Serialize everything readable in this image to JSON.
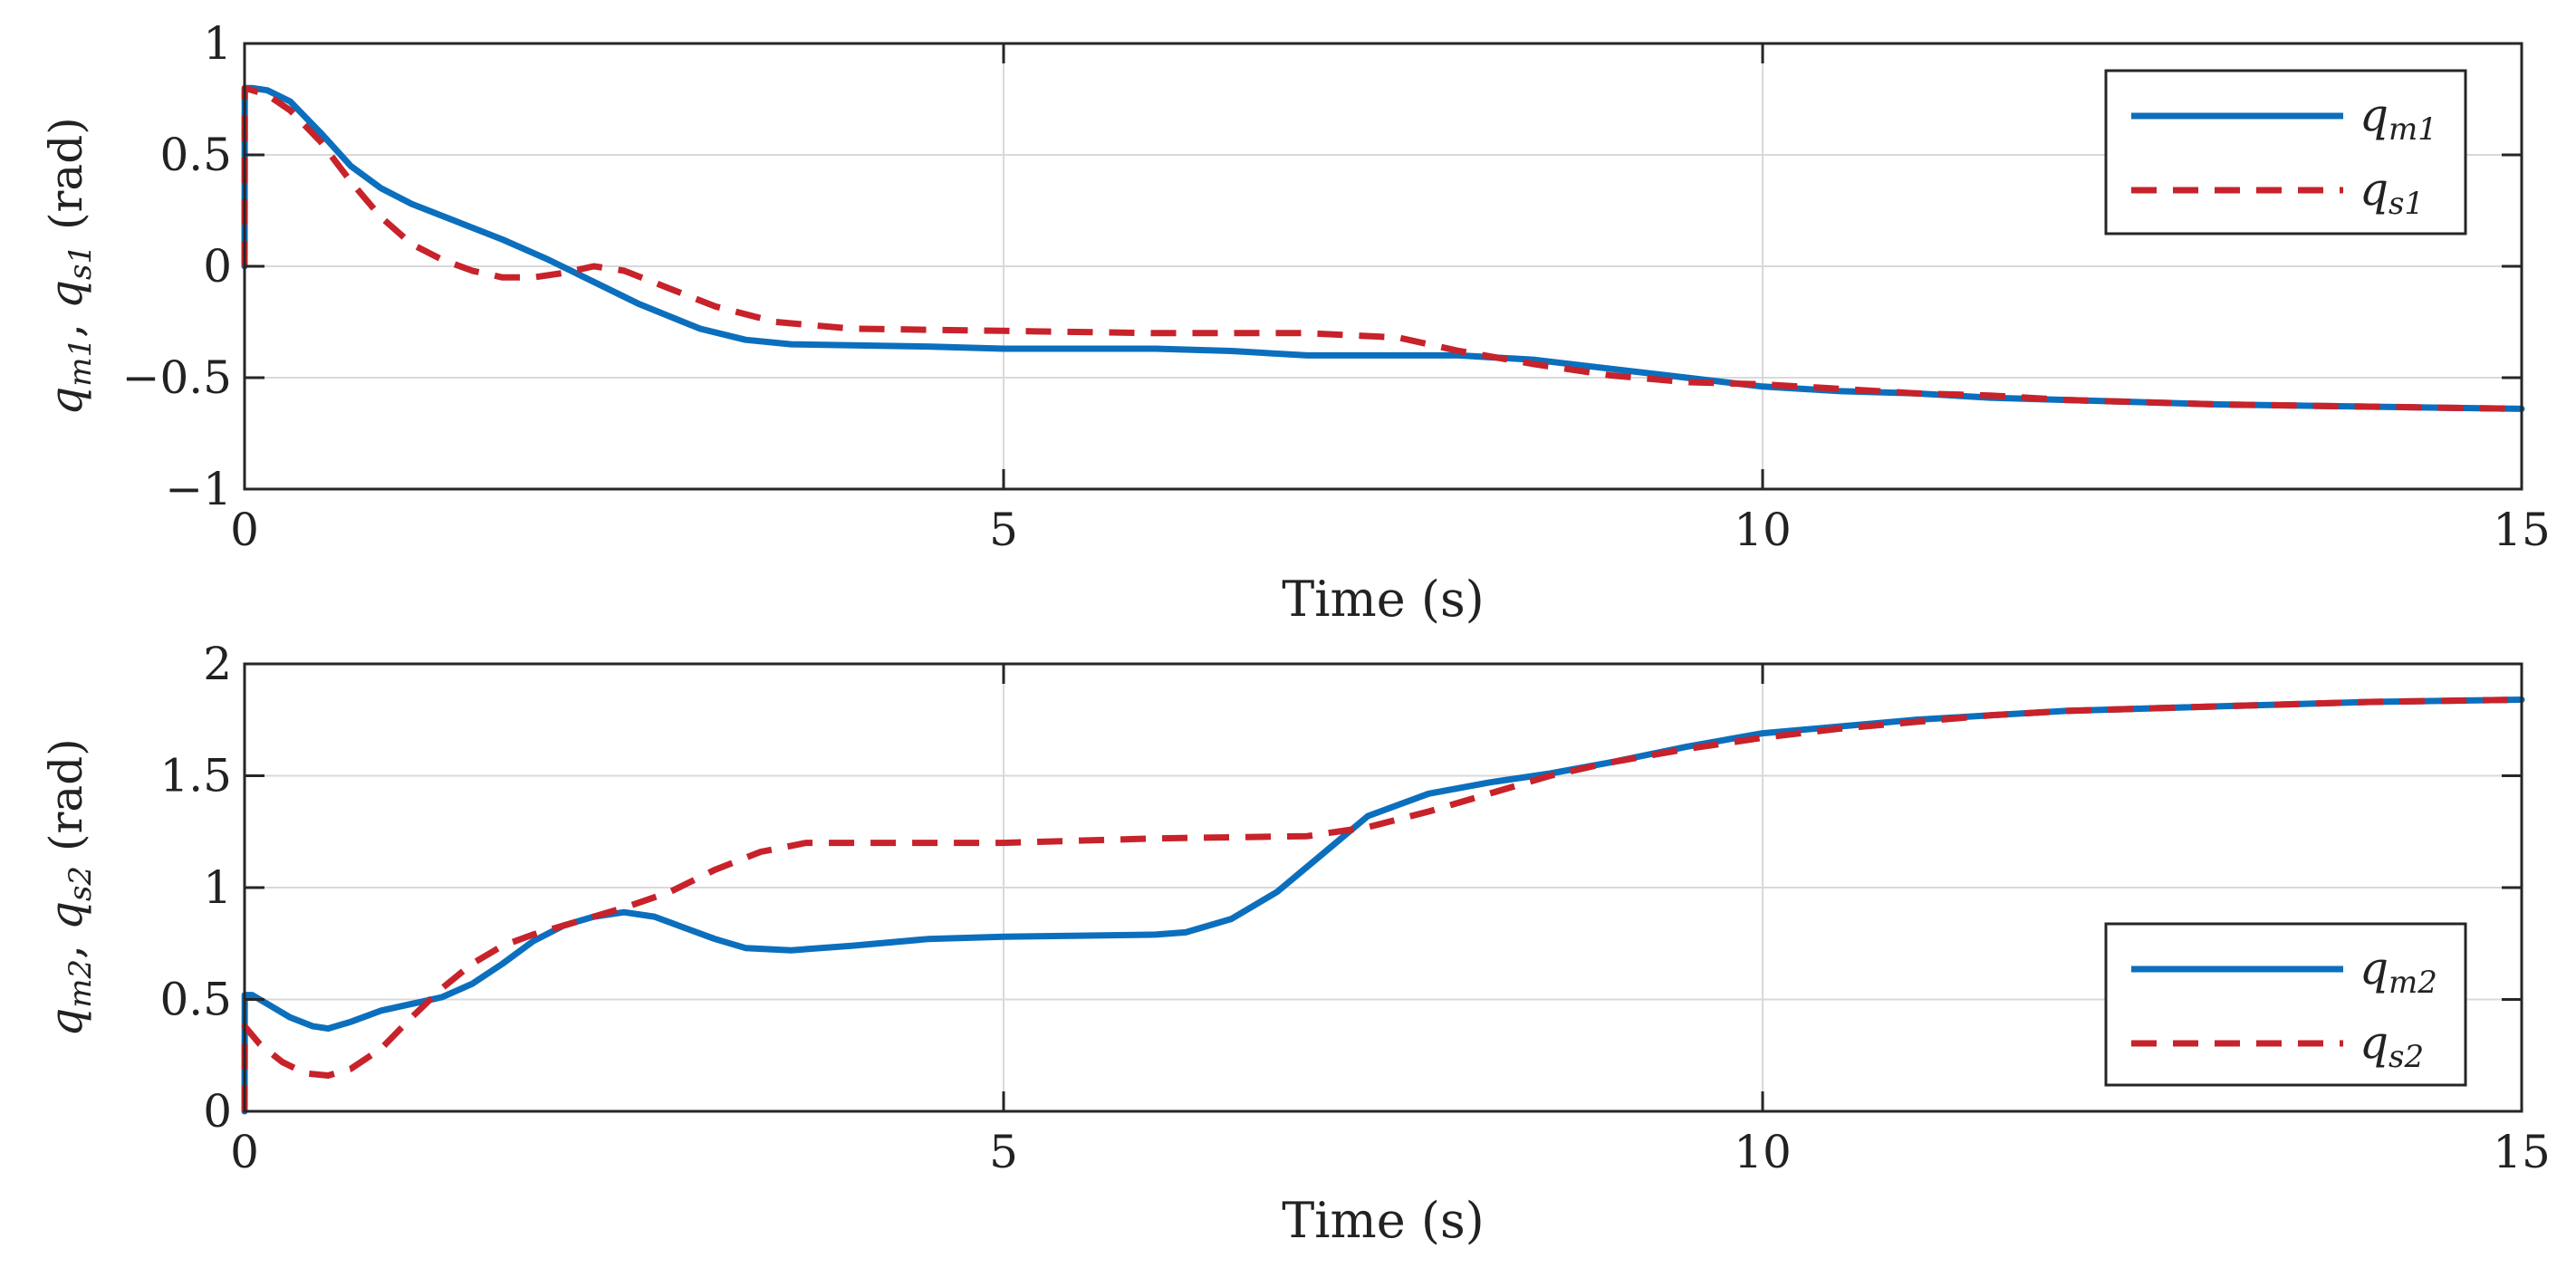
{
  "colors": {
    "series_primary": "#0b6fbd",
    "series_secondary": "#c8222a",
    "grid": "#d9d9d9",
    "axis": "#262626"
  },
  "chart_data": [
    {
      "type": "line",
      "xlabel": "Time (s)",
      "ylabel": {
        "q1": "q",
        "sub1": "m1",
        "q2": "q",
        "sub2": "s1",
        "unit": "(rad)"
      },
      "xlim": [
        0,
        15
      ],
      "ylim": [
        -1,
        1
      ],
      "xticks": [
        0,
        5,
        10,
        15
      ],
      "xtick_labels": [
        "0",
        "5",
        "10",
        "15"
      ],
      "yticks": [
        -1,
        -0.5,
        0,
        0.5,
        1
      ],
      "ytick_labels": [
        "−1",
        "−0.5",
        "0",
        "0.5",
        "1"
      ],
      "grid": true,
      "legend": {
        "position": "top-right"
      },
      "series": [
        {
          "name": "q",
          "sub": "m1",
          "style": "solid",
          "color": "#0b6fbd",
          "x": [
            0,
            0.001,
            0.05,
            0.15,
            0.3,
            0.5,
            0.7,
            0.9,
            1.1,
            1.4,
            1.7,
            2.0,
            2.3,
            2.6,
            3.0,
            3.3,
            3.6,
            4.0,
            4.5,
            5.0,
            5.5,
            6.0,
            6.5,
            7.0,
            7.5,
            8.0,
            8.5,
            9.0,
            9.5,
            10.0,
            10.5,
            11.0,
            11.5,
            12.0,
            13.0,
            14.0,
            15.0
          ],
          "y": [
            0,
            0.8,
            0.8,
            0.79,
            0.74,
            0.6,
            0.45,
            0.35,
            0.28,
            0.2,
            0.12,
            0.03,
            -0.07,
            -0.17,
            -0.28,
            -0.33,
            -0.35,
            -0.355,
            -0.36,
            -0.37,
            -0.37,
            -0.37,
            -0.38,
            -0.4,
            -0.4,
            -0.4,
            -0.42,
            -0.46,
            -0.5,
            -0.54,
            -0.56,
            -0.57,
            -0.59,
            -0.6,
            -0.62,
            -0.63,
            -0.64
          ]
        },
        {
          "name": "q",
          "sub": "s1",
          "style": "dashed",
          "color": "#c8222a",
          "x": [
            0,
            0.001,
            0.05,
            0.15,
            0.3,
            0.5,
            0.7,
            0.9,
            1.1,
            1.3,
            1.5,
            1.7,
            1.9,
            2.1,
            2.3,
            2.5,
            2.8,
            3.1,
            3.5,
            4.0,
            5.0,
            6.0,
            7.0,
            7.6,
            8.0,
            8.5,
            9.0,
            9.5,
            10.0,
            10.5,
            11.0,
            11.5,
            12.0,
            13.0,
            14.0,
            15.0
          ],
          "y": [
            0,
            0.8,
            0.79,
            0.77,
            0.7,
            0.56,
            0.38,
            0.22,
            0.1,
            0.03,
            -0.02,
            -0.05,
            -0.05,
            -0.03,
            0.0,
            -0.02,
            -0.1,
            -0.18,
            -0.25,
            -0.28,
            -0.29,
            -0.3,
            -0.3,
            -0.32,
            -0.38,
            -0.44,
            -0.49,
            -0.52,
            -0.53,
            -0.55,
            -0.57,
            -0.58,
            -0.6,
            -0.62,
            -0.63,
            -0.64
          ]
        }
      ]
    },
    {
      "type": "line",
      "xlabel": "Time (s)",
      "ylabel": {
        "q1": "q",
        "sub1": "m2",
        "q2": "q",
        "sub2": "s2",
        "unit": "(rad)"
      },
      "xlim": [
        0,
        15
      ],
      "ylim": [
        0,
        2
      ],
      "xticks": [
        0,
        5,
        10,
        15
      ],
      "xtick_labels": [
        "0",
        "5",
        "10",
        "15"
      ],
      "yticks": [
        0,
        0.5,
        1,
        1.5,
        2
      ],
      "ytick_labels": [
        "0",
        "0.5",
        "1",
        "1.5",
        "2"
      ],
      "grid": true,
      "legend": {
        "position": "bottom-right"
      },
      "series": [
        {
          "name": "q",
          "sub": "m2",
          "style": "solid",
          "color": "#0b6fbd",
          "x": [
            0,
            0.001,
            0.05,
            0.15,
            0.3,
            0.45,
            0.55,
            0.7,
            0.9,
            1.1,
            1.3,
            1.5,
            1.7,
            1.9,
            2.1,
            2.3,
            2.5,
            2.7,
            2.9,
            3.1,
            3.3,
            3.6,
            4.0,
            4.5,
            5.0,
            5.5,
            6.0,
            6.2,
            6.5,
            6.8,
            7.1,
            7.4,
            7.8,
            8.2,
            8.6,
            9.0,
            9.5,
            10.0,
            10.5,
            11.0,
            11.5,
            12.0,
            13.0,
            14.0,
            15.0
          ],
          "y": [
            0,
            0.52,
            0.52,
            0.48,
            0.42,
            0.38,
            0.37,
            0.4,
            0.45,
            0.48,
            0.51,
            0.57,
            0.66,
            0.76,
            0.83,
            0.87,
            0.89,
            0.87,
            0.82,
            0.77,
            0.73,
            0.72,
            0.74,
            0.77,
            0.78,
            0.785,
            0.79,
            0.8,
            0.86,
            0.98,
            1.15,
            1.32,
            1.42,
            1.47,
            1.51,
            1.56,
            1.63,
            1.69,
            1.72,
            1.75,
            1.77,
            1.79,
            1.81,
            1.83,
            1.84
          ]
        },
        {
          "name": "q",
          "sub": "s2",
          "style": "dashed",
          "color": "#c8222a",
          "x": [
            0,
            0.001,
            0.1,
            0.25,
            0.4,
            0.55,
            0.7,
            0.9,
            1.1,
            1.3,
            1.5,
            1.7,
            1.9,
            2.1,
            2.3,
            2.5,
            2.8,
            3.1,
            3.4,
            3.7,
            4.0,
            4.5,
            5.0,
            6.0,
            7.0,
            7.4,
            7.8,
            8.2,
            8.6,
            9.0,
            9.5,
            10.0,
            10.5,
            11.0,
            11.5,
            12.0,
            13.0,
            14.0,
            15.0
          ],
          "y": [
            0,
            0.38,
            0.3,
            0.22,
            0.17,
            0.16,
            0.19,
            0.28,
            0.42,
            0.55,
            0.66,
            0.74,
            0.79,
            0.83,
            0.87,
            0.91,
            0.98,
            1.08,
            1.16,
            1.2,
            1.2,
            1.2,
            1.2,
            1.22,
            1.23,
            1.27,
            1.34,
            1.42,
            1.5,
            1.56,
            1.62,
            1.67,
            1.71,
            1.74,
            1.77,
            1.79,
            1.81,
            1.83,
            1.84
          ]
        }
      ]
    }
  ]
}
